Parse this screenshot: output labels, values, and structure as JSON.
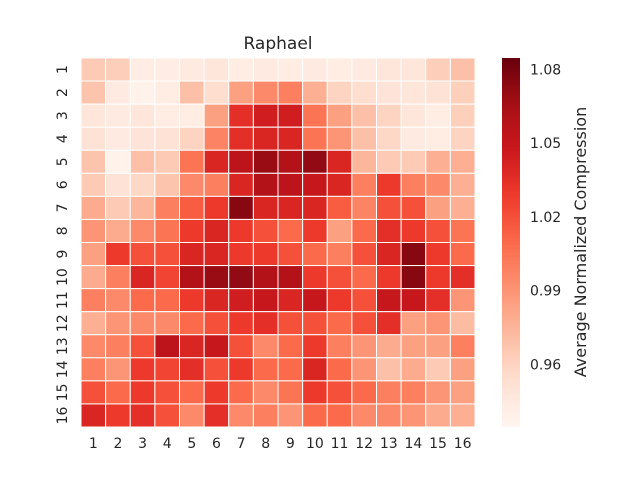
{
  "chart_data": {
    "type": "heatmap",
    "title": "Raphael",
    "xlabel": "",
    "ylabel": "",
    "x_categories": [
      "1",
      "2",
      "3",
      "4",
      "5",
      "6",
      "7",
      "8",
      "9",
      "10",
      "11",
      "12",
      "13",
      "14",
      "15",
      "16"
    ],
    "y_categories": [
      "1",
      "2",
      "3",
      "4",
      "5",
      "6",
      "7",
      "8",
      "9",
      "10",
      "11",
      "12",
      "13",
      "14",
      "15",
      "16"
    ],
    "values": [
      [
        0.965,
        0.963,
        0.942,
        0.942,
        0.945,
        0.948,
        0.943,
        0.945,
        0.943,
        0.945,
        0.943,
        0.945,
        0.948,
        0.948,
        0.963,
        0.97
      ],
      [
        0.968,
        0.945,
        0.938,
        0.943,
        0.97,
        0.955,
        0.985,
        0.995,
        1.0,
        0.978,
        0.96,
        0.955,
        0.95,
        0.948,
        0.952,
        0.962
      ],
      [
        0.948,
        0.945,
        0.948,
        0.943,
        0.943,
        0.985,
        1.035,
        1.045,
        1.045,
        1.005,
        0.985,
        0.97,
        0.96,
        0.948,
        0.943,
        0.962
      ],
      [
        0.952,
        0.945,
        0.95,
        0.952,
        0.96,
        0.998,
        1.035,
        1.04,
        1.04,
        1.005,
        0.99,
        0.97,
        0.958,
        0.945,
        0.943,
        0.96
      ],
      [
        0.968,
        0.938,
        0.97,
        0.965,
        1.005,
        1.04,
        1.055,
        1.07,
        1.06,
        1.072,
        1.04,
        0.975,
        0.965,
        0.965,
        0.978,
        0.978
      ],
      [
        0.965,
        0.952,
        0.958,
        0.968,
        0.995,
        1.0,
        1.04,
        1.06,
        1.055,
        1.05,
        1.04,
        1.0,
        1.03,
        1.0,
        0.995,
        0.978
      ],
      [
        0.98,
        0.965,
        0.975,
        1.0,
        1.015,
        1.03,
        1.075,
        1.04,
        1.04,
        1.04,
        1.015,
        0.998,
        1.02,
        1.02,
        0.985,
        0.978
      ],
      [
        0.99,
        0.98,
        0.995,
        1.005,
        1.03,
        1.04,
        1.03,
        1.02,
        1.01,
        1.03,
        0.985,
        1.01,
        1.035,
        1.03,
        1.02,
        1.005
      ],
      [
        0.985,
        1.03,
        1.02,
        1.02,
        1.04,
        1.04,
        1.03,
        1.03,
        1.02,
        1.01,
        1.0,
        1.02,
        1.04,
        1.075,
        1.03,
        1.01
      ],
      [
        0.98,
        1.0,
        1.04,
        1.025,
        1.06,
        1.07,
        1.072,
        1.06,
        1.06,
        1.03,
        1.02,
        1.01,
        1.03,
        1.075,
        1.03,
        1.035
      ],
      [
        1.0,
        0.995,
        1.01,
        1.01,
        1.03,
        1.04,
        1.045,
        1.05,
        1.04,
        1.05,
        1.03,
        1.02,
        1.05,
        1.05,
        1.035,
        0.99
      ],
      [
        0.978,
        0.99,
        0.995,
        0.995,
        1.01,
        1.02,
        1.03,
        1.035,
        1.02,
        1.02,
        1.01,
        1.02,
        1.035,
        0.985,
        0.99,
        0.972
      ],
      [
        0.995,
        1.0,
        1.02,
        1.055,
        1.04,
        1.05,
        1.02,
        0.995,
        1.01,
        1.03,
        1.0,
        0.99,
        0.98,
        0.985,
        0.985,
        1.0
      ],
      [
        1.0,
        0.99,
        1.03,
        1.025,
        1.035,
        1.02,
        1.03,
        1.01,
        1.01,
        1.04,
        1.01,
        0.99,
        0.97,
        0.98,
        0.965,
        0.985
      ],
      [
        1.02,
        1.01,
        1.03,
        1.02,
        1.01,
        1.03,
        1.01,
        0.995,
        1.005,
        1.03,
        1.02,
        1.01,
        1.0,
        1.0,
        0.99,
        0.985
      ],
      [
        1.04,
        1.03,
        1.035,
        1.02,
        0.995,
        1.035,
        0.995,
        1.0,
        0.99,
        1.01,
        1.01,
        0.995,
        0.995,
        0.99,
        0.98,
        0.978
      ]
    ],
    "colorbar": {
      "label": "Average Normalized Compression",
      "min": 0.935,
      "max": 1.085,
      "ticks": [
        "0.96",
        "0.99",
        "1.02",
        "1.05",
        "1.08"
      ],
      "colormap": "Reds"
    },
    "grid": false
  }
}
